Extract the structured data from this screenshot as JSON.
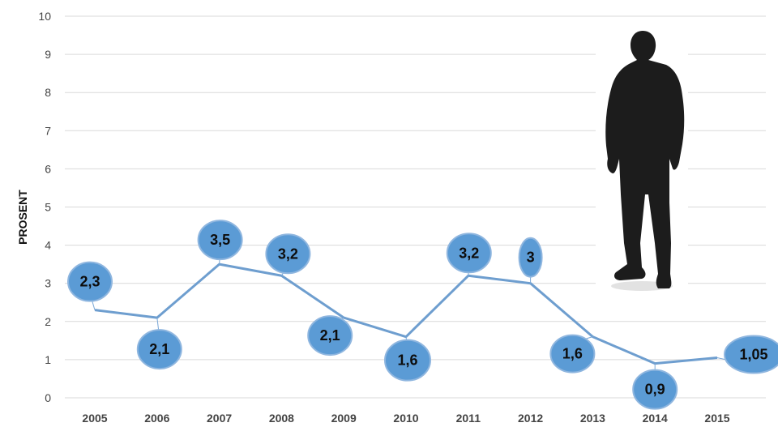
{
  "chart_data": {
    "type": "line",
    "title": "",
    "xlabel": "",
    "ylabel": "PROSENT",
    "ylim": [
      0,
      10
    ],
    "yticks": [
      "0",
      "1",
      "2",
      "3",
      "4",
      "5",
      "6",
      "7",
      "8",
      "9",
      "10"
    ],
    "categories": [
      "2005",
      "2006",
      "2007",
      "2008",
      "2009",
      "2010",
      "2011",
      "2012",
      "2013",
      "2014",
      "2015"
    ],
    "series": [
      {
        "values": [
          2.3,
          2.1,
          3.5,
          3.2,
          2.1,
          1.6,
          3.2,
          3.0,
          1.6,
          0.9,
          1.05
        ],
        "labels": [
          "2,3",
          "2,1",
          "3,5",
          "3,2",
          "2,1",
          "1,6",
          "3,2",
          "3",
          "1,6",
          "0,9",
          "1,05"
        ],
        "color": "#6e9ecf"
      }
    ],
    "grid": true,
    "legend": "none",
    "label_bubble_color": "#5b9bd5"
  },
  "decoration": {
    "silhouette_icon": "person-silhouette-icon"
  }
}
